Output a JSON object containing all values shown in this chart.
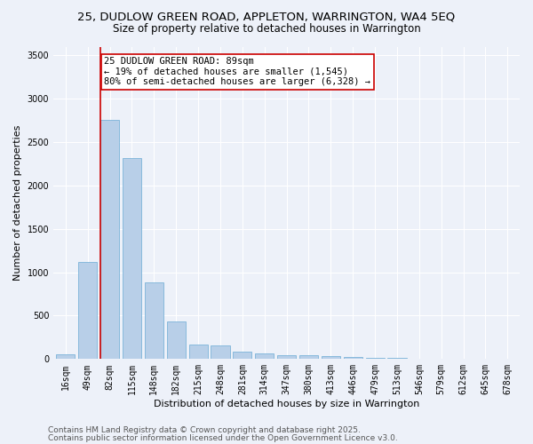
{
  "title_line1": "25, DUDLOW GREEN ROAD, APPLETON, WARRINGTON, WA4 5EQ",
  "title_line2": "Size of property relative to detached houses in Warrington",
  "xlabel": "Distribution of detached houses by size in Warrington",
  "ylabel": "Number of detached properties",
  "categories": [
    "16sqm",
    "49sqm",
    "82sqm",
    "115sqm",
    "148sqm",
    "182sqm",
    "215sqm",
    "248sqm",
    "281sqm",
    "314sqm",
    "347sqm",
    "380sqm",
    "413sqm",
    "446sqm",
    "479sqm",
    "513sqm",
    "546sqm",
    "579sqm",
    "612sqm",
    "645sqm",
    "678sqm"
  ],
  "values": [
    50,
    1120,
    2760,
    2320,
    880,
    430,
    165,
    155,
    85,
    60,
    45,
    40,
    30,
    20,
    15,
    10,
    5,
    3,
    2,
    1,
    1
  ],
  "bar_color": "#b8cfe8",
  "bar_edge_color": "#6aaad4",
  "bg_color": "#edf1f9",
  "grid_color": "#ffffff",
  "annotation_text": "25 DUDLOW GREEN ROAD: 89sqm\n← 19% of detached houses are smaller (1,545)\n80% of semi-detached houses are larger (6,328) →",
  "annotation_box_color": "#ffffff",
  "annotation_box_edge": "#cc0000",
  "vline_color": "#cc0000",
  "ylim": [
    0,
    3600
  ],
  "yticks": [
    0,
    500,
    1000,
    1500,
    2000,
    2500,
    3000,
    3500
  ],
  "footer_line1": "Contains HM Land Registry data © Crown copyright and database right 2025.",
  "footer_line2": "Contains public sector information licensed under the Open Government Licence v3.0.",
  "title_fontsize": 9.5,
  "subtitle_fontsize": 8.5,
  "axis_label_fontsize": 8,
  "tick_fontsize": 7,
  "footer_fontsize": 6.5,
  "annotation_fontsize": 7.5
}
